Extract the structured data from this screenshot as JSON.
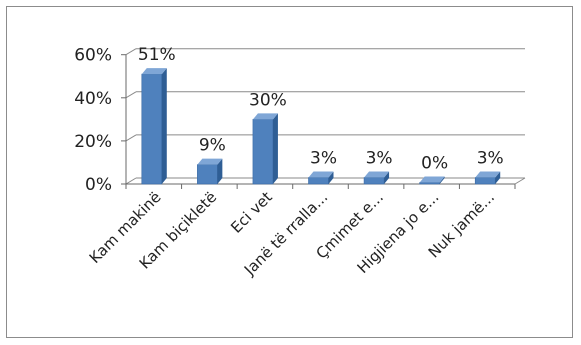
{
  "chart_data": {
    "type": "bar",
    "style": "3d-column",
    "categories": [
      "Kam makinë",
      "Kam biçikletë",
      "Eci vet",
      "Janë të rralla...",
      "Çmimet e...",
      "Higjiena jo e...",
      "Nuk jamë..."
    ],
    "values": [
      51,
      9,
      30,
      3,
      3,
      0,
      3
    ],
    "data_labels": [
      "51%",
      "9%",
      "30%",
      "3%",
      "3%",
      "0%",
      "3%"
    ],
    "y_ticks": [
      "0%",
      "20%",
      "40%",
      "60%"
    ],
    "ylim": [
      0,
      60
    ],
    "grid": true,
    "legend": "none",
    "bar_color": "#4f81bd",
    "bar_side_color": "#2f5e95",
    "bar_top_color": "#7fa6d6"
  }
}
